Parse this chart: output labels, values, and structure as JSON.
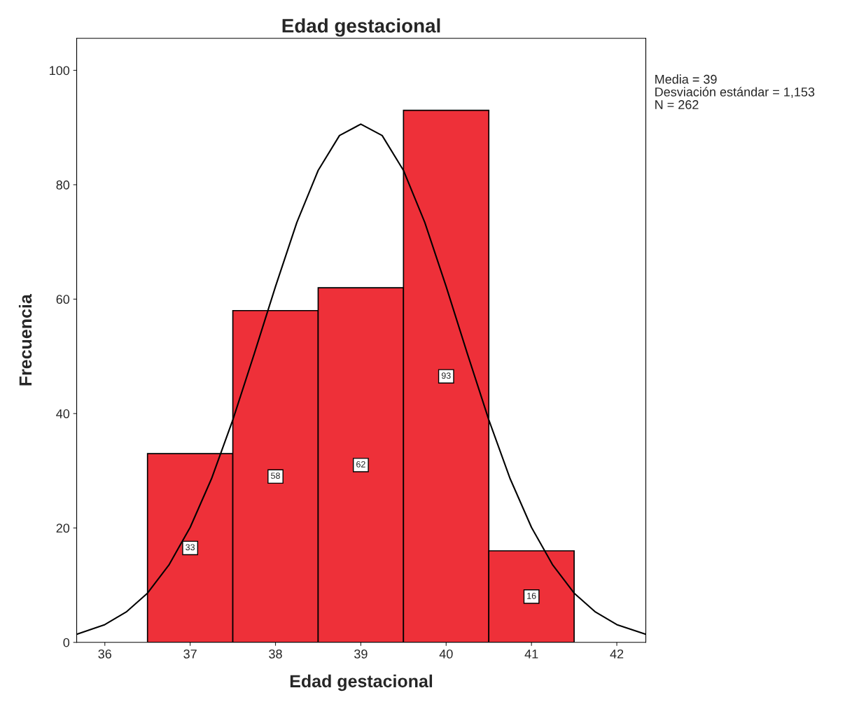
{
  "chart_data": {
    "type": "histogram",
    "title": "Edad gestacional",
    "xlabel": "Edad gestacional",
    "ylabel": "Frecuencia",
    "bins": [
      36.5,
      37.5,
      38.5,
      39.5,
      40.5,
      41.5
    ],
    "values": [
      33,
      58,
      62,
      93,
      16
    ],
    "color": "#ee3039",
    "value_labels": [
      "33",
      "58",
      "62",
      "93",
      "16"
    ],
    "series": [
      {
        "type": "line",
        "color": "#000000",
        "x": [
          35.67,
          36.0,
          36.25,
          36.5,
          36.75,
          37.0,
          37.25,
          37.5,
          37.75,
          38.0,
          38.25,
          38.5,
          38.75,
          39.0,
          39.25,
          39.5,
          39.75,
          40.0,
          40.25,
          40.5,
          40.75,
          41.0,
          41.25,
          41.5,
          41.75,
          42.0,
          42.34
        ],
        "values": [
          1.4,
          3.1,
          5.3,
          8.6,
          13.5,
          20.1,
          28.6,
          38.9,
          50.4,
          62.2,
          73.4,
          82.5,
          88.6,
          90.6,
          88.6,
          82.5,
          73.4,
          62.2,
          50.4,
          38.9,
          28.6,
          20.1,
          13.5,
          8.6,
          5.3,
          3.1,
          1.4
        ]
      }
    ],
    "xlim": [
      35.67,
      42.34
    ],
    "ylim": [
      0,
      105.6
    ],
    "xticks": [
      36,
      37,
      38,
      39,
      40,
      41,
      42
    ],
    "yticks": [
      0,
      20,
      40,
      60,
      80,
      100
    ],
    "grid": false,
    "legend": false,
    "annotations": [
      "Media = 39",
      "Desviación estándar = 1,153",
      "N = 262"
    ]
  }
}
